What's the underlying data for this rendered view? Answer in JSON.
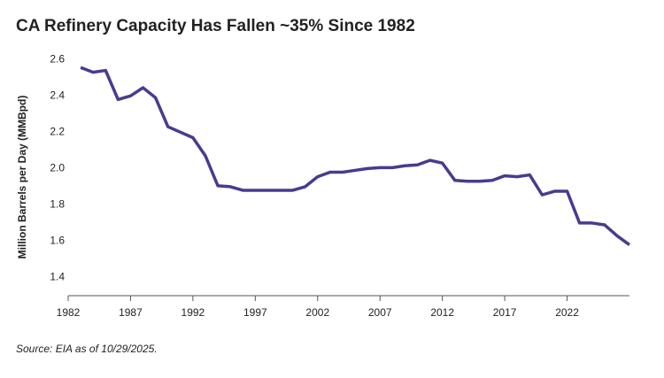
{
  "chart_data": {
    "type": "line",
    "title": "CA Refinery Capacity Has Fallen ~35% Since 1982",
    "y_label": "Million Barrels per Day (MMBpd)",
    "source": "Source: EIA as of 10/29/2025.",
    "x": [
      1983,
      1984,
      1985,
      1986,
      1987,
      1988,
      1989,
      1990,
      1991,
      1992,
      1993,
      1994,
      1995,
      1996,
      1997,
      1998,
      1999,
      2000,
      2001,
      2002,
      2003,
      2004,
      2005,
      2006,
      2007,
      2008,
      2009,
      2010,
      2011,
      2012,
      2013,
      2014,
      2015,
      2016,
      2017,
      2018,
      2019,
      2020,
      2021,
      2022,
      2023,
      2024,
      2025,
      2026,
      2027
    ],
    "values": [
      2.556,
      2.53,
      2.54,
      2.38,
      2.4,
      2.445,
      2.39,
      2.23,
      2.2,
      2.17,
      2.07,
      1.905,
      1.9,
      1.88,
      1.88,
      1.88,
      1.88,
      1.88,
      1.9,
      1.955,
      1.98,
      1.98,
      1.99,
      2.0,
      2.005,
      2.005,
      2.015,
      2.02,
      2.045,
      2.03,
      1.935,
      1.93,
      1.93,
      1.935,
      1.96,
      1.955,
      1.965,
      1.855,
      1.875,
      1.875,
      1.7,
      1.7,
      1.69,
      1.63,
      1.58
    ],
    "color": "#4b3a8f",
    "xlim": [
      1982,
      2027
    ],
    "xticks": [
      1982,
      1987,
      1992,
      1997,
      2002,
      2007,
      2012,
      2017,
      2022
    ],
    "ylim": [
      1.3,
      2.65
    ],
    "yticks": [
      {
        "value": 1.4,
        "label": "1.4"
      },
      {
        "value": 1.6,
        "label": "1.6"
      },
      {
        "value": 1.8,
        "label": "1.8"
      },
      {
        "value": 2.0,
        "label": "2.0"
      },
      {
        "value": 2.2,
        "label": "2.2"
      },
      {
        "value": 2.4,
        "label": "2.4"
      },
      {
        "value": 2.6,
        "label": "2.6"
      }
    ]
  }
}
